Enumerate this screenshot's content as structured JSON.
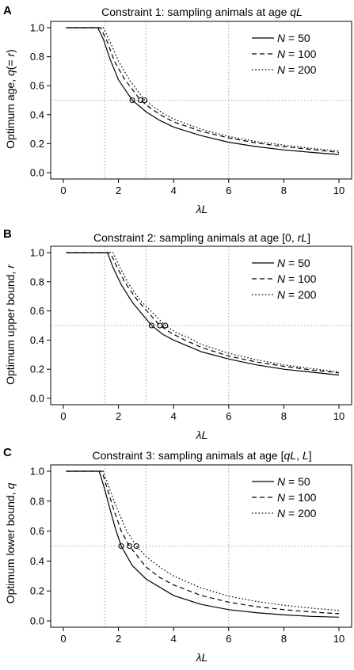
{
  "chart_data": [
    {
      "panel": "A",
      "type": "line",
      "title": "Constraint 1: sampling animals at age qL",
      "title_parts": [
        {
          "t": "Constraint 1: sampling animals at age "
        },
        {
          "t": "qL",
          "i": true
        }
      ],
      "ylabel": "Optimum age, q(= r)",
      "ylabel_parts": [
        {
          "t": "Optimum age, "
        },
        {
          "t": "q",
          "i": true
        },
        {
          "t": "(= "
        },
        {
          "t": "r",
          "i": true
        },
        {
          "t": ")"
        }
      ],
      "xlabel": "λL",
      "xlim": [
        0,
        10
      ],
      "ylim": [
        0,
        1
      ],
      "xticks": [
        "0",
        "2",
        "4",
        "6",
        "8",
        "10"
      ],
      "yticks": [
        "0.0",
        "0.2",
        "0.4",
        "0.6",
        "0.8",
        "1.0"
      ],
      "guides": {
        "vlines": [
          1.5,
          3,
          6
        ],
        "hline": 0.5
      },
      "legend": {
        "position": "top-right",
        "labels": [
          "N = 50",
          "N = 100",
          "N = 200"
        ]
      },
      "series": [
        {
          "name": "N = 50",
          "dash": "solid",
          "x": [
            0.1,
            1.25,
            1.45,
            1.7,
            2,
            2.5,
            3,
            3.5,
            4,
            5,
            6,
            7,
            8,
            9,
            10
          ],
          "y": [
            1,
            1,
            0.92,
            0.78,
            0.64,
            0.5,
            0.42,
            0.36,
            0.315,
            0.255,
            0.21,
            0.18,
            0.157,
            0.14,
            0.125
          ]
        },
        {
          "name": "N = 100",
          "dash": "dashed",
          "x": [
            0.1,
            1.35,
            1.6,
            1.85,
            2.2,
            2.8,
            3.2,
            3.6,
            4,
            5,
            6,
            7,
            8,
            9,
            10
          ],
          "y": [
            1,
            1,
            0.9,
            0.77,
            0.65,
            0.5,
            0.44,
            0.39,
            0.35,
            0.285,
            0.24,
            0.205,
            0.18,
            0.16,
            0.14
          ]
        },
        {
          "name": "N = 200",
          "dash": "dotted",
          "x": [
            0.1,
            1.45,
            1.7,
            2,
            2.4,
            2.95,
            3.3,
            3.7,
            4,
            5,
            6,
            7,
            8,
            9,
            10
          ],
          "y": [
            1,
            1,
            0.9,
            0.77,
            0.64,
            0.5,
            0.45,
            0.4,
            0.37,
            0.3,
            0.25,
            0.215,
            0.19,
            0.168,
            0.15
          ]
        }
      ],
      "markers": [
        {
          "x": 2.5,
          "y": 0.5
        },
        {
          "x": 2.8,
          "y": 0.5
        },
        {
          "x": 2.95,
          "y": 0.5
        }
      ]
    },
    {
      "panel": "B",
      "type": "line",
      "title": "Constraint 2: sampling animals at age [0, rL]",
      "title_parts": [
        {
          "t": "Constraint 2: sampling animals at age [0, "
        },
        {
          "t": "rL",
          "i": true
        },
        {
          "t": "]"
        }
      ],
      "ylabel": "Optimum upper bound, r",
      "ylabel_parts": [
        {
          "t": "Optimum upper bound, "
        },
        {
          "t": "r",
          "i": true
        }
      ],
      "xlabel": "λL",
      "xlim": [
        0,
        10
      ],
      "ylim": [
        0,
        1
      ],
      "xticks": [
        "0",
        "2",
        "4",
        "6",
        "8",
        "10"
      ],
      "yticks": [
        "0.0",
        "0.2",
        "0.4",
        "0.6",
        "0.8",
        "1.0"
      ],
      "guides": {
        "vlines": [
          1.5,
          3,
          6
        ],
        "hline": 0.5
      },
      "legend": {
        "position": "top-right",
        "labels": [
          "N = 50",
          "N = 100",
          "N = 200"
        ]
      },
      "series": [
        {
          "name": "N = 50",
          "dash": "solid",
          "x": [
            0.1,
            1.6,
            1.8,
            2.1,
            2.5,
            3.2,
            3.6,
            4,
            5,
            6,
            7,
            8,
            9,
            10
          ],
          "y": [
            1,
            1,
            0.9,
            0.78,
            0.66,
            0.5,
            0.44,
            0.4,
            0.32,
            0.27,
            0.23,
            0.2,
            0.18,
            0.16
          ]
        },
        {
          "name": "N = 100",
          "dash": "dashed",
          "x": [
            0.1,
            1.7,
            1.95,
            2.25,
            2.7,
            3.5,
            3.9,
            4.3,
            5,
            6,
            7,
            8,
            9,
            10
          ],
          "y": [
            1,
            1,
            0.9,
            0.79,
            0.67,
            0.5,
            0.45,
            0.41,
            0.35,
            0.29,
            0.25,
            0.22,
            0.195,
            0.175
          ]
        },
        {
          "name": "N = 200",
          "dash": "dotted",
          "x": [
            0.1,
            1.8,
            2.05,
            2.35,
            2.8,
            3.7,
            4.1,
            4.5,
            5,
            6,
            7,
            8,
            9,
            10
          ],
          "y": [
            1,
            1,
            0.9,
            0.79,
            0.67,
            0.5,
            0.45,
            0.42,
            0.37,
            0.31,
            0.265,
            0.23,
            0.205,
            0.182
          ]
        }
      ],
      "markers": [
        {
          "x": 3.2,
          "y": 0.5
        },
        {
          "x": 3.5,
          "y": 0.5
        },
        {
          "x": 3.7,
          "y": 0.5
        }
      ]
    },
    {
      "panel": "C",
      "type": "line",
      "title": "Constraint 3: sampling animals at age [qL,  L]",
      "title_parts": [
        {
          "t": "Constraint 3: sampling animals at age ["
        },
        {
          "t": "qL",
          "i": true
        },
        {
          "t": ",  "
        },
        {
          "t": "L",
          "i": true
        },
        {
          "t": "]"
        }
      ],
      "ylabel": "Optimum lower bound, q",
      "ylabel_parts": [
        {
          "t": "Optimum lower bound, "
        },
        {
          "t": "q",
          "i": true
        }
      ],
      "xlabel": "λL",
      "xlim": [
        0,
        10
      ],
      "ylim": [
        0,
        1
      ],
      "xticks": [
        "0",
        "2",
        "4",
        "6",
        "8",
        "10"
      ],
      "yticks": [
        "0.0",
        "0.2",
        "0.4",
        "0.6",
        "0.8",
        "1.0"
      ],
      "guides": {
        "vlines": [
          1.5,
          3,
          6
        ],
        "hline": 0.5
      },
      "legend": {
        "position": "top-right",
        "labels": [
          "N = 50",
          "N = 100",
          "N = 200"
        ]
      },
      "series": [
        {
          "name": "N = 50",
          "dash": "solid",
          "x": [
            0.1,
            1.3,
            1.5,
            1.7,
            1.9,
            2.1,
            2.5,
            3,
            4,
            5,
            6,
            7,
            8,
            9,
            10
          ],
          "y": [
            1,
            1,
            0.88,
            0.74,
            0.61,
            0.5,
            0.37,
            0.28,
            0.17,
            0.11,
            0.075,
            0.055,
            0.04,
            0.03,
            0.025
          ]
        },
        {
          "name": "N = 100",
          "dash": "dashed",
          "x": [
            0.1,
            1.4,
            1.6,
            1.8,
            2.1,
            2.4,
            3,
            3.5,
            4,
            5,
            6,
            7,
            8,
            9,
            10
          ],
          "y": [
            1,
            1,
            0.88,
            0.76,
            0.6,
            0.5,
            0.36,
            0.29,
            0.24,
            0.17,
            0.125,
            0.095,
            0.075,
            0.06,
            0.048
          ]
        },
        {
          "name": "N = 200",
          "dash": "dotted",
          "x": [
            0.1,
            1.45,
            1.7,
            1.95,
            2.3,
            2.65,
            3,
            3.5,
            4,
            5,
            6,
            7,
            8,
            9,
            10
          ],
          "y": [
            1,
            1,
            0.87,
            0.75,
            0.6,
            0.5,
            0.43,
            0.36,
            0.3,
            0.22,
            0.165,
            0.13,
            0.105,
            0.085,
            0.07
          ]
        }
      ],
      "markers": [
        {
          "x": 2.1,
          "y": 0.5
        },
        {
          "x": 2.4,
          "y": 0.5
        },
        {
          "x": 2.65,
          "y": 0.5
        }
      ]
    }
  ]
}
